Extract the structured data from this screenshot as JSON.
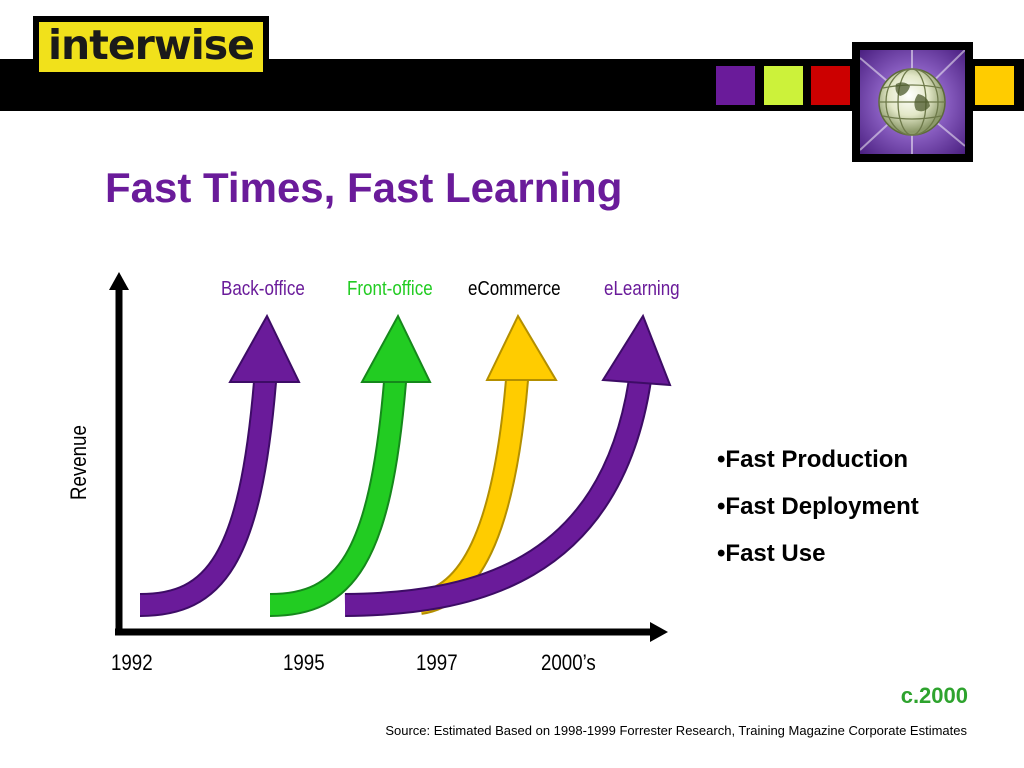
{
  "brand": {
    "logo_text": "interwise"
  },
  "swatch_colors": [
    "#6a1b9a",
    "#ccf23a",
    "#cc0000",
    "#ffcc00"
  ],
  "title": "Fast Times, Fast Learning",
  "diagram": {
    "y_axis_label": "Revenue",
    "x_ticks": [
      "1992",
      "1995",
      "1997",
      "2000’s"
    ],
    "waves": [
      {
        "label": "Back-office",
        "color": "#6a1b9a"
      },
      {
        "label": "Front-office",
        "color": "#22cc22"
      },
      {
        "label": "eCommerce",
        "color": "#ffcc00"
      },
      {
        "label": "eLearning",
        "color": "#6a1b9a"
      }
    ]
  },
  "bullets": [
    "•Fast Production",
    "•Fast Deployment",
    "•Fast Use"
  ],
  "date_note": "c.2000",
  "source": "Source: Estimated Based on 1998-1999 Forrester Research, Training Magazine Corporate Estimates"
}
